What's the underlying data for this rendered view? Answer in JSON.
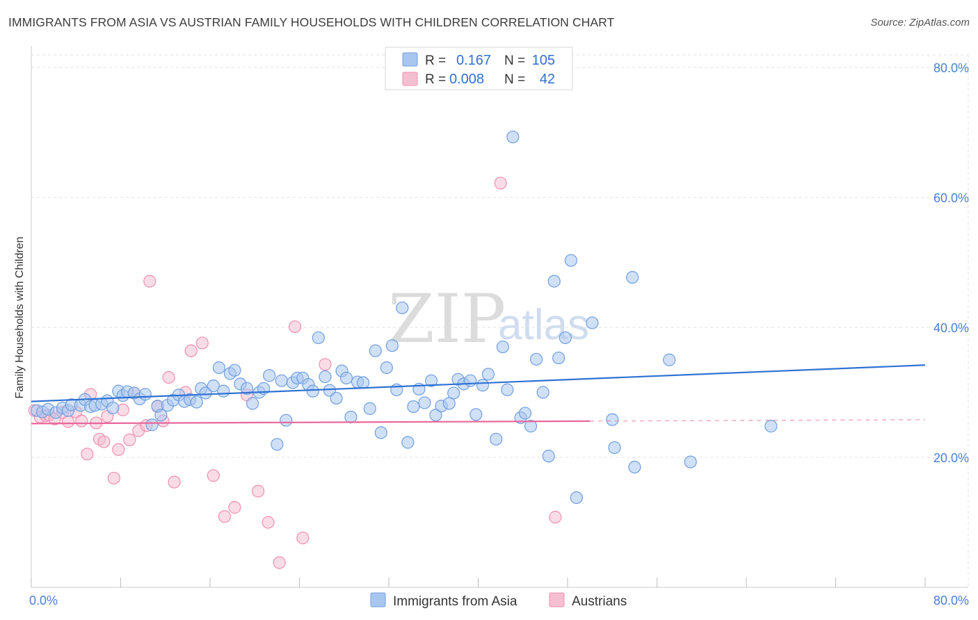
{
  "header": {
    "title": "IMMIGRANTS FROM ASIA VS AUSTRIAN FAMILY HOUSEHOLDS WITH CHILDREN CORRELATION CHART",
    "source": "Source: ZipAtlas.com"
  },
  "watermark": {
    "zip": "ZIP",
    "atlas": "atlas"
  },
  "legend": {
    "rows": [
      {
        "r_label": "R =",
        "r_value": "0.167",
        "n_label": "N =",
        "n_value": "105",
        "color": "#6f9fe0"
      },
      {
        "r_label": "R =",
        "r_value": "0.008",
        "n_label": "N =",
        "n_value": "42",
        "color": "#ef8fb0"
      }
    ]
  },
  "chart_data": {
    "type": "scatter",
    "title": "IMMIGRANTS FROM ASIA VS AUSTRIAN FAMILY HOUSEHOLDS WITH CHILDREN CORRELATION CHART",
    "xlabel": "Immigrants from Asia",
    "ylabel": "Family Households with Children",
    "xlim": [
      0,
      80
    ],
    "ylim": [
      0,
      80
    ],
    "x_tick_labels": [
      "0.0%",
      "80.0%"
    ],
    "y_ticks": [
      20,
      40,
      60,
      80
    ],
    "y_tick_labels": [
      "20.0%",
      "40.0%",
      "60.0%",
      "80.0%"
    ],
    "grid": true,
    "series": [
      {
        "name": "Immigrants from Asia",
        "color": "#6f9fe0",
        "fill": "#a9c6ef",
        "trend": {
          "x0": 0,
          "y0": 28.6,
          "x1": 80,
          "y1": 34.2,
          "dashed_from": null
        },
        "points": [
          [
            0.5,
            27.2
          ],
          [
            1.0,
            27.0
          ],
          [
            1.5,
            27.4
          ],
          [
            2.2,
            26.9
          ],
          [
            2.8,
            27.6
          ],
          [
            3.3,
            27.2
          ],
          [
            3.6,
            28.1
          ],
          [
            4.4,
            28.0
          ],
          [
            4.8,
            28.9
          ],
          [
            5.3,
            27.8
          ],
          [
            5.7,
            28.0
          ],
          [
            6.3,
            28.2
          ],
          [
            6.8,
            28.7
          ],
          [
            7.3,
            27.6
          ],
          [
            7.8,
            30.2
          ],
          [
            8.2,
            29.5
          ],
          [
            8.6,
            30.1
          ],
          [
            9.2,
            29.9
          ],
          [
            9.7,
            29.0
          ],
          [
            10.2,
            29.7
          ],
          [
            10.8,
            25.0
          ],
          [
            11.3,
            27.9
          ],
          [
            11.6,
            26.5
          ],
          [
            12.2,
            28.0
          ],
          [
            12.7,
            28.8
          ],
          [
            13.2,
            29.6
          ],
          [
            13.7,
            28.6
          ],
          [
            14.2,
            28.9
          ],
          [
            14.8,
            28.5
          ],
          [
            15.2,
            30.6
          ],
          [
            15.6,
            29.9
          ],
          [
            16.3,
            31.0
          ],
          [
            16.8,
            33.8
          ],
          [
            17.2,
            30.2
          ],
          [
            17.8,
            32.9
          ],
          [
            18.2,
            33.4
          ],
          [
            18.7,
            31.3
          ],
          [
            19.3,
            30.6
          ],
          [
            19.8,
            28.3
          ],
          [
            20.4,
            30.0
          ],
          [
            20.8,
            30.6
          ],
          [
            21.3,
            32.6
          ],
          [
            22.0,
            22.0
          ],
          [
            22.4,
            31.8
          ],
          [
            22.8,
            25.7
          ],
          [
            23.4,
            31.5
          ],
          [
            23.8,
            32.2
          ],
          [
            24.3,
            32.2
          ],
          [
            24.8,
            31.2
          ],
          [
            25.2,
            30.2
          ],
          [
            25.7,
            38.4
          ],
          [
            26.3,
            32.4
          ],
          [
            26.7,
            30.3
          ],
          [
            27.3,
            29.1
          ],
          [
            27.8,
            33.3
          ],
          [
            28.2,
            32.2
          ],
          [
            28.6,
            26.2
          ],
          [
            29.2,
            31.6
          ],
          [
            29.7,
            31.5
          ],
          [
            30.3,
            27.5
          ],
          [
            30.8,
            36.4
          ],
          [
            31.3,
            23.8
          ],
          [
            31.8,
            33.8
          ],
          [
            32.3,
            37.2
          ],
          [
            32.7,
            30.4
          ],
          [
            33.2,
            43.0
          ],
          [
            33.7,
            22.3
          ],
          [
            34.2,
            27.8
          ],
          [
            34.7,
            30.5
          ],
          [
            35.2,
            28.4
          ],
          [
            35.8,
            31.8
          ],
          [
            36.2,
            26.5
          ],
          [
            36.7,
            27.9
          ],
          [
            37.4,
            28.3
          ],
          [
            37.8,
            29.9
          ],
          [
            38.2,
            32.0
          ],
          [
            38.7,
            31.3
          ],
          [
            39.3,
            31.8
          ],
          [
            39.8,
            26.6
          ],
          [
            40.4,
            31.1
          ],
          [
            40.9,
            32.8
          ],
          [
            41.6,
            22.8
          ],
          [
            42.2,
            37.0
          ],
          [
            42.6,
            30.4
          ],
          [
            43.1,
            69.3
          ],
          [
            43.8,
            26.1
          ],
          [
            44.2,
            26.8
          ],
          [
            44.7,
            24.8
          ],
          [
            45.2,
            35.1
          ],
          [
            45.8,
            30.0
          ],
          [
            46.3,
            20.2
          ],
          [
            46.8,
            47.1
          ],
          [
            47.2,
            35.3
          ],
          [
            47.8,
            38.4
          ],
          [
            48.3,
            50.3
          ],
          [
            48.8,
            13.8
          ],
          [
            50.2,
            40.7
          ],
          [
            52.0,
            25.8
          ],
          [
            52.2,
            21.5
          ],
          [
            53.8,
            47.7
          ],
          [
            54.0,
            18.5
          ],
          [
            57.1,
            35.0
          ],
          [
            59.0,
            19.3
          ],
          [
            66.2,
            24.8
          ]
        ]
      },
      {
        "name": "Austrians",
        "color": "#ef8fb0",
        "fill": "#f5bfd2",
        "trend": {
          "x0": 0,
          "y0": 25.2,
          "x1": 80,
          "y1": 25.8,
          "dashed_from": 50
        },
        "points": [
          [
            0.3,
            27.2
          ],
          [
            0.8,
            26.2
          ],
          [
            1.3,
            26.4
          ],
          [
            1.6,
            26.5
          ],
          [
            2.1,
            25.9
          ],
          [
            2.8,
            26.9
          ],
          [
            3.3,
            25.5
          ],
          [
            4.0,
            27.0
          ],
          [
            4.5,
            25.6
          ],
          [
            5.0,
            20.5
          ],
          [
            5.3,
            29.7
          ],
          [
            5.8,
            25.3
          ],
          [
            6.1,
            22.8
          ],
          [
            6.5,
            22.4
          ],
          [
            6.8,
            26.3
          ],
          [
            7.4,
            16.8
          ],
          [
            7.8,
            21.2
          ],
          [
            8.2,
            27.3
          ],
          [
            8.8,
            22.7
          ],
          [
            9.2,
            29.9
          ],
          [
            9.6,
            24.1
          ],
          [
            10.3,
            24.9
          ],
          [
            10.6,
            47.1
          ],
          [
            11.3,
            27.8
          ],
          [
            11.8,
            25.6
          ],
          [
            12.3,
            32.3
          ],
          [
            12.8,
            16.2
          ],
          [
            13.8,
            30.0
          ],
          [
            14.3,
            36.4
          ],
          [
            15.3,
            37.6
          ],
          [
            16.3,
            17.2
          ],
          [
            17.3,
            10.9
          ],
          [
            18.2,
            12.3
          ],
          [
            19.3,
            29.6
          ],
          [
            20.3,
            14.8
          ],
          [
            21.2,
            10.0
          ],
          [
            22.2,
            3.8
          ],
          [
            23.6,
            40.1
          ],
          [
            24.3,
            7.6
          ],
          [
            26.3,
            34.3
          ],
          [
            42.0,
            62.2
          ],
          [
            46.9,
            10.8
          ]
        ]
      }
    ]
  },
  "bottom_legend": {
    "items": [
      {
        "label": "Immigrants from Asia",
        "color": "#a9c6ef",
        "border": "#6f9fe0"
      },
      {
        "label": "Austrians",
        "color": "#f5bfd2",
        "border": "#ef8fb0"
      }
    ]
  }
}
